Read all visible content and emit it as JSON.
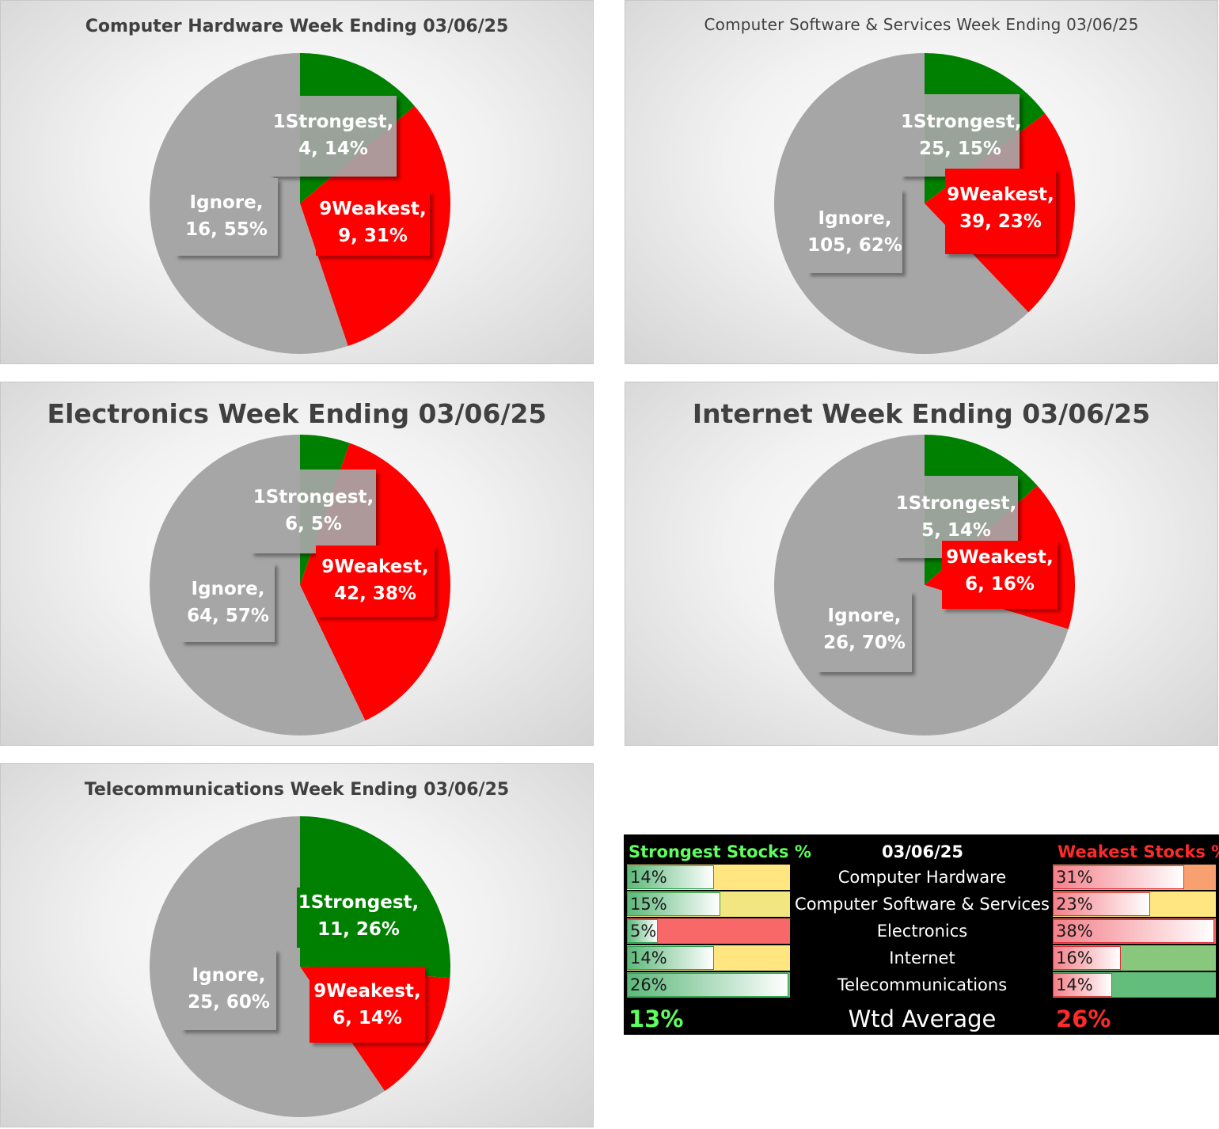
{
  "chart_data": [
    {
      "type": "pie",
      "title": "Computer Hardware Week Ending 03/06/25",
      "slices": [
        {
          "name": "1Strongest",
          "count": 4,
          "percent": "14%",
          "color": "#008000"
        },
        {
          "name": "9Weakest",
          "count": 9,
          "percent": "31%",
          "color": "#ff0000"
        },
        {
          "name": "Ignore",
          "count": 16,
          "percent": "55%",
          "color": "#a6a6a6"
        }
      ]
    },
    {
      "type": "pie",
      "title": "Computer Software & Services Week Ending 03/06/25",
      "slices": [
        {
          "name": "1Strongest",
          "count": 25,
          "percent": "15%",
          "color": "#008000"
        },
        {
          "name": "9Weakest",
          "count": 39,
          "percent": "23%",
          "color": "#ff0000"
        },
        {
          "name": "Ignore",
          "count": 105,
          "percent": "62%",
          "color": "#a6a6a6"
        }
      ]
    },
    {
      "type": "pie",
      "title": "Electronics Week Ending 03/06/25",
      "slices": [
        {
          "name": "1Strongest",
          "count": 6,
          "percent": "5%",
          "color": "#008000"
        },
        {
          "name": "9Weakest",
          "count": 42,
          "percent": "38%",
          "color": "#ff0000"
        },
        {
          "name": "Ignore",
          "count": 64,
          "percent": "57%",
          "color": "#a6a6a6"
        }
      ]
    },
    {
      "type": "pie",
      "title": "Internet Week Ending 03/06/25",
      "slices": [
        {
          "name": "1Strongest",
          "count": 5,
          "percent": "14%",
          "color": "#008000"
        },
        {
          "name": "9Weakest",
          "count": 6,
          "percent": "16%",
          "color": "#ff0000"
        },
        {
          "name": "Ignore",
          "count": 26,
          "percent": "70%",
          "color": "#a6a6a6"
        }
      ]
    },
    {
      "type": "pie",
      "title": "Telecommunications Week Ending 03/06/25",
      "slices": [
        {
          "name": "1Strongest",
          "count": 11,
          "percent": "26%",
          "color": "#008000"
        },
        {
          "name": "9Weakest",
          "count": 6,
          "percent": "14%",
          "color": "#ff0000"
        },
        {
          "name": "Ignore",
          "count": 25,
          "percent": "60%",
          "color": "#a6a6a6"
        }
      ]
    },
    {
      "type": "table",
      "header": {
        "strong": "Strongest Stocks %",
        "date": "03/06/25",
        "weak": "Weakest Stocks %"
      },
      "rows": [
        {
          "industry": "Computer Hardware",
          "strong": 14,
          "strong_label": "14%",
          "strong_bg": "#ffe680",
          "weak": 31,
          "weak_label": "31%",
          "weak_bg": "#f9a070"
        },
        {
          "industry": "Computer Software & Services",
          "strong": 15,
          "strong_label": "15%",
          "strong_bg": "#f2e680",
          "weak": 23,
          "weak_label": "23%",
          "weak_bg": "#ffe680"
        },
        {
          "industry": "Electronics",
          "strong": 5,
          "strong_label": "5%",
          "strong_bg": "#f86868",
          "weak": 38,
          "weak_label": "38%",
          "weak_bg": "#f86868"
        },
        {
          "industry": "Internet",
          "strong": 14,
          "strong_label": "14%",
          "strong_bg": "#ffe680",
          "weak": 16,
          "weak_label": "16%",
          "weak_bg": "#88c77c"
        },
        {
          "industry": "Telecommunications",
          "strong": 26,
          "strong_label": "26%",
          "strong_bg": "#63be7b",
          "weak": 14,
          "weak_label": "14%",
          "weak_bg": "#63be7b"
        }
      ],
      "footer": {
        "strong": "13%",
        "label": "Wtd Average",
        "weak": "26%"
      },
      "bar_max": 26
    }
  ]
}
